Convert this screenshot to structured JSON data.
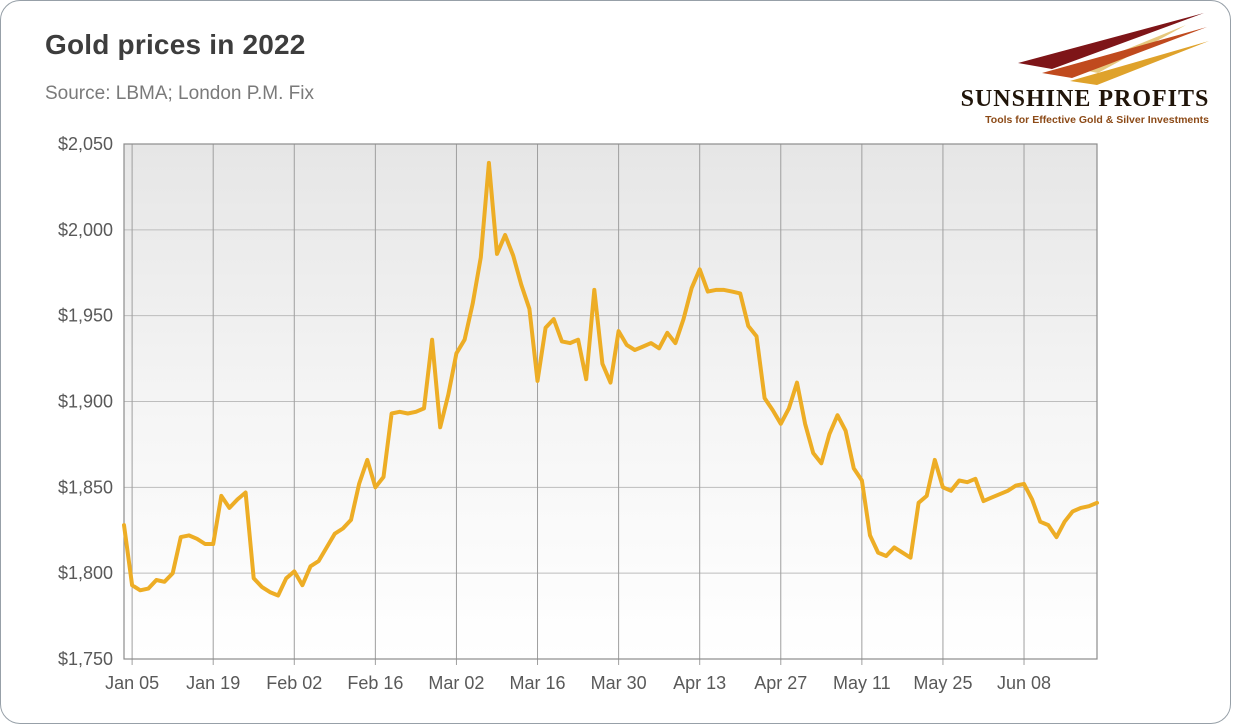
{
  "header": {
    "title": "Gold prices in 2022",
    "source": "Source: LBMA; London P.M. Fix"
  },
  "logo": {
    "wordmark": "SUNSHINE PROFITS",
    "tagline": "Tools for Effective Gold & Silver Investments"
  },
  "chart_data": {
    "type": "line",
    "title": "Gold prices in 2022",
    "ylim": [
      1750,
      2050
    ],
    "y_ticks": [
      1750,
      1800,
      1850,
      1900,
      1950,
      2000,
      2050
    ],
    "y_tick_prefix": "$",
    "x_tick_labels": [
      "Jan 05",
      "Jan 19",
      "Feb 02",
      "Feb 16",
      "Mar 02",
      "Mar 16",
      "Mar 30",
      "Apr 13",
      "Apr 27",
      "May 11",
      "May 25",
      "Jun 08"
    ],
    "x_tick_indices": [
      1,
      11,
      21,
      31,
      41,
      51,
      61,
      71,
      81,
      91,
      101,
      111
    ],
    "grid": true,
    "legend": false,
    "line_color": "#EDAD25",
    "values": [
      1828,
      1793,
      1790,
      1791,
      1796,
      1795,
      1800,
      1821,
      1822,
      1820,
      1817,
      1817,
      1845,
      1838,
      1843,
      1847,
      1797,
      1792,
      1789,
      1787,
      1797,
      1801,
      1793,
      1804,
      1807,
      1815,
      1823,
      1826,
      1831,
      1852,
      1866,
      1850,
      1856,
      1893,
      1894,
      1893,
      1894,
      1896,
      1936,
      1885,
      1904,
      1928,
      1936,
      1957,
      1984,
      2039,
      1986,
      1997,
      1985,
      1968,
      1954,
      1912,
      1943,
      1948,
      1935,
      1934,
      1936,
      1913,
      1965,
      1922,
      1911,
      1941,
      1933,
      1930,
      1932,
      1934,
      1931,
      1940,
      1934,
      1948,
      1966,
      1977,
      1964,
      1965,
      1965,
      1964,
      1963,
      1944,
      1938,
      1902,
      1895,
      1887,
      1896,
      1911,
      1887,
      1870,
      1864,
      1881,
      1892,
      1883,
      1861,
      1854,
      1822,
      1812,
      1810,
      1815,
      1812,
      1809,
      1841,
      1845,
      1866,
      1850,
      1848,
      1854,
      1853,
      1855,
      1842,
      1844,
      1846,
      1848,
      1851,
      1852,
      1843,
      1830,
      1828,
      1821,
      1830,
      1836,
      1838,
      1839,
      1841
    ]
  }
}
